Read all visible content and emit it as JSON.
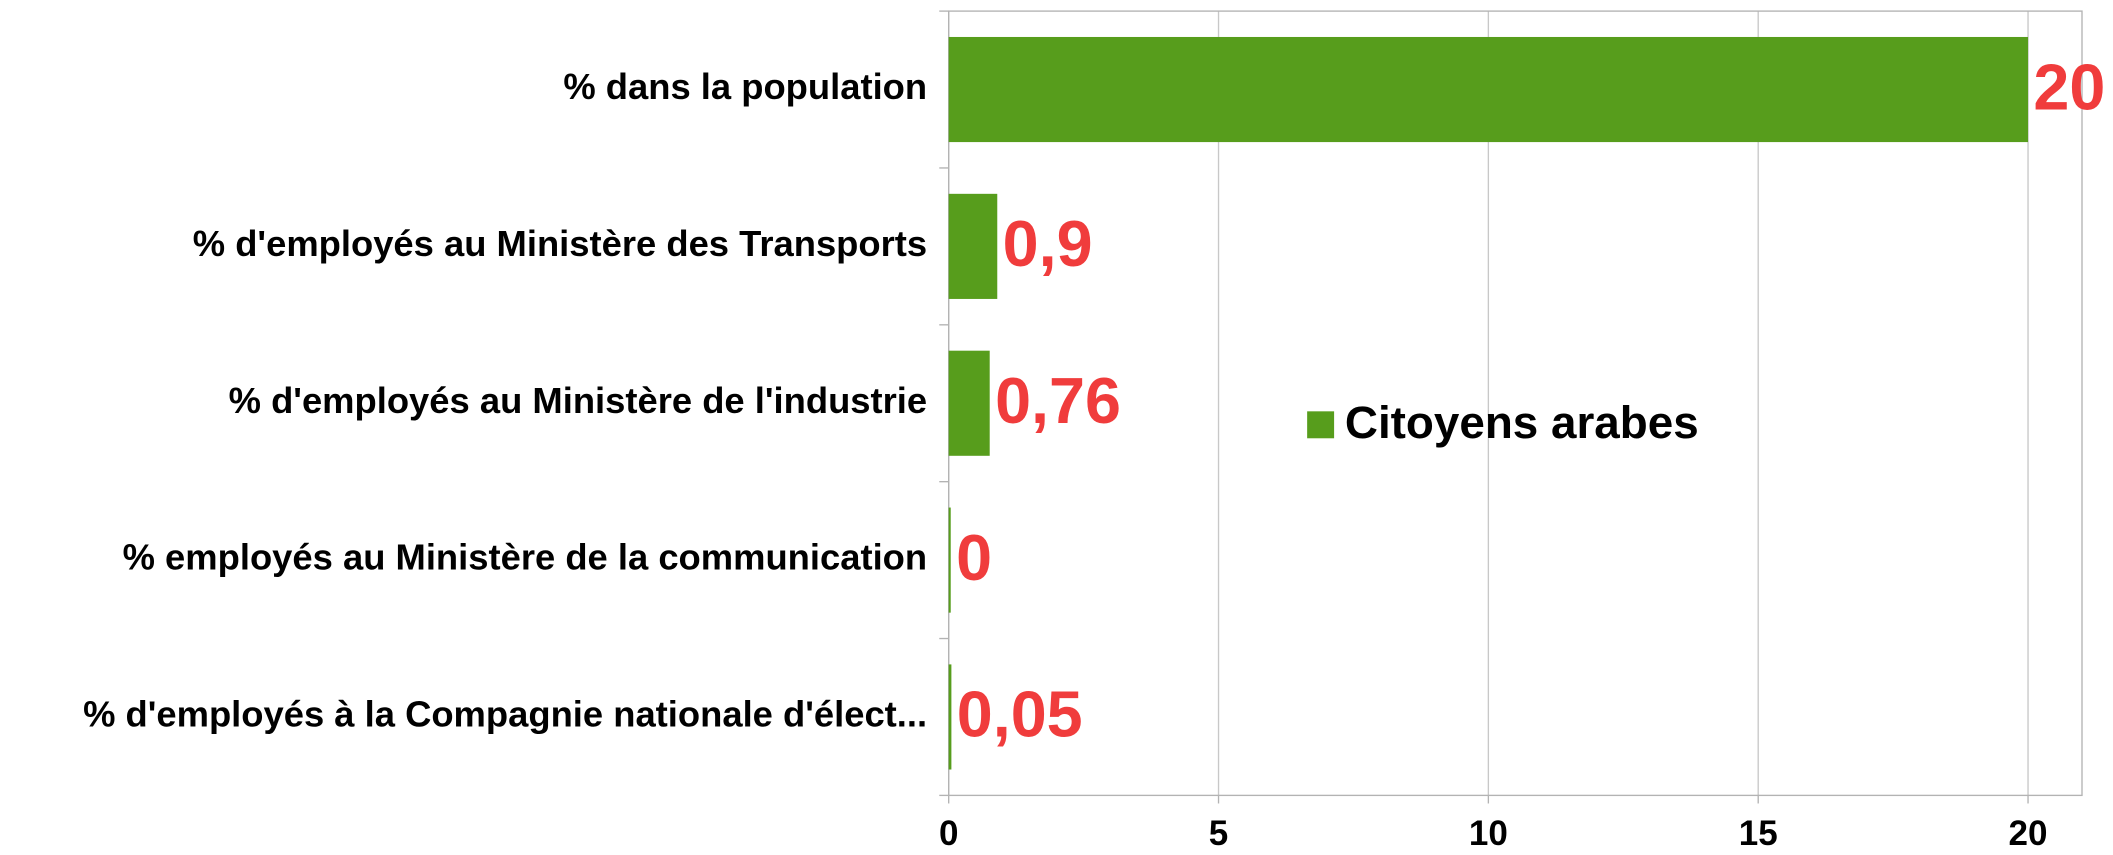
{
  "chart_data": {
    "type": "hbar",
    "categories": [
      "% dans la population",
      "% d'employés au Ministère des Transports",
      "% d'employés au Ministère de l'industrie",
      "% employés au Ministère de la communication",
      "% d'employés à la Compagnie nationale d'élect..."
    ],
    "series": [
      {
        "name": "Citoyens arabes",
        "color": "#579d1c",
        "values": [
          20,
          0.9,
          0.76,
          0,
          0.05
        ],
        "value_labels": [
          "20",
          "0,9",
          "0,76",
          "0",
          "0,05"
        ]
      }
    ],
    "value_label_color": "#f03c3c",
    "xlim": [
      0,
      21
    ],
    "xticks": [
      0,
      5,
      10,
      15,
      20
    ],
    "grid": true,
    "legend": "center"
  }
}
